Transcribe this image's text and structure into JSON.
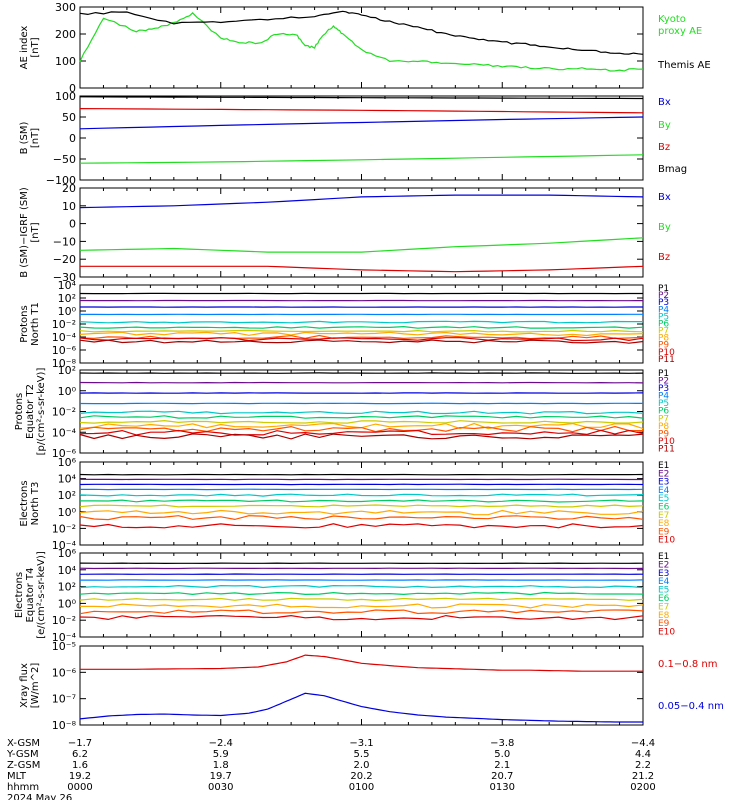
{
  "chart_data": [
    {
      "type": "line",
      "ylabel": "AE index [nT]",
      "ylim": [
        0,
        300
      ],
      "yticks": [
        0,
        100,
        200,
        300
      ],
      "series": [
        {
          "name": "Kyoto proxy AE",
          "color": "#22dd22",
          "x": [
            0,
            5,
            12,
            16,
            20,
            24,
            30,
            34,
            38,
            42,
            46,
            48,
            50,
            52,
            54,
            56,
            60,
            66,
            72,
            78,
            84,
            90,
            96,
            102,
            108,
            114,
            120
          ],
          "y": [
            100,
            260,
            210,
            220,
            240,
            275,
            185,
            170,
            165,
            200,
            200,
            155,
            150,
            200,
            230,
            200,
            140,
            100,
            98,
            92,
            90,
            80,
            75,
            70,
            72,
            65,
            70
          ]
        },
        {
          "name": "Themis AE",
          "color": "#000000",
          "x": [
            0,
            10,
            20,
            30,
            40,
            50,
            56,
            60,
            66,
            72,
            78,
            84,
            90,
            96,
            102,
            108,
            114,
            120
          ],
          "y": [
            275,
            280,
            240,
            245,
            255,
            265,
            285,
            270,
            245,
            225,
            200,
            185,
            170,
            160,
            150,
            140,
            130,
            125
          ]
        }
      ]
    },
    {
      "type": "line",
      "ylabel": "B (SM) [nT]",
      "ylim": [
        -100,
        100
      ],
      "yticks": [
        -100,
        -50,
        0,
        50,
        100
      ],
      "series": [
        {
          "name": "Bx",
          "color": "#0000dd",
          "x": [
            0,
            30,
            60,
            90,
            120
          ],
          "y": [
            22,
            30,
            37,
            44,
            50
          ]
        },
        {
          "name": "By",
          "color": "#22dd22",
          "x": [
            0,
            30,
            60,
            90,
            120
          ],
          "y": [
            -60,
            -57,
            -52,
            -46,
            -40
          ]
        },
        {
          "name": "Bz",
          "color": "#dd0000",
          "x": [
            0,
            30,
            60,
            90,
            120
          ],
          "y": [
            70,
            68,
            66,
            63,
            60
          ]
        },
        {
          "name": "Bmag",
          "color": "#000000",
          "x": [
            0,
            30,
            60,
            90,
            120
          ],
          "y": [
            98,
            97,
            96,
            95,
            94
          ]
        }
      ]
    },
    {
      "type": "line",
      "ylabel": "B (SM)−IGRF (SM) [nT]",
      "ylim": [
        -30,
        20
      ],
      "yticks": [
        -30,
        -20,
        -10,
        0,
        10,
        20
      ],
      "series": [
        {
          "name": "Bx",
          "color": "#0000dd",
          "x": [
            0,
            20,
            40,
            60,
            80,
            100,
            120
          ],
          "y": [
            9,
            10,
            12,
            15,
            16,
            16,
            15
          ]
        },
        {
          "name": "By",
          "color": "#22dd22",
          "x": [
            0,
            20,
            40,
            60,
            80,
            100,
            120
          ],
          "y": [
            -15,
            -14,
            -16,
            -16,
            -13,
            -11,
            -8
          ]
        },
        {
          "name": "Bz",
          "color": "#dd0000",
          "x": [
            0,
            20,
            40,
            60,
            80,
            100,
            120
          ],
          "y": [
            -24,
            -24,
            -24,
            -26,
            -27,
            -26,
            -24
          ]
        }
      ]
    },
    {
      "type": "line",
      "ylabel": "Protons North T1",
      "yscale": "log",
      "ylim": [
        1e-08,
        10000.0
      ],
      "yticks": [
        "10^-8",
        "10^-6",
        "10^-4",
        "10^-2",
        "10^0",
        "10^2",
        "10^4"
      ],
      "series": [
        {
          "name": "P1",
          "color": "#000000",
          "level": 500
        },
        {
          "name": "P2",
          "color": "#6a0d8a",
          "level": 40
        },
        {
          "name": "P3",
          "color": "#0000dd",
          "level": 4
        },
        {
          "name": "P4",
          "color": "#0080ff",
          "level": 0.3
        },
        {
          "name": "P5",
          "color": "#00c8c8",
          "level": 0.02
        },
        {
          "name": "P6",
          "color": "#00cc66",
          "level": 0.003
        },
        {
          "name": "P7",
          "color": "#cccc00",
          "level": 0.0008
        },
        {
          "name": "P8",
          "color": "#ffaa00",
          "level": 0.0003
        },
        {
          "name": "P9",
          "color": "#ff5500",
          "level": 0.0001
        },
        {
          "name": "P10",
          "color": "#dd0000",
          "level": 5e-05
        },
        {
          "name": "P11",
          "color": "#aa0000",
          "level": 2e-05
        }
      ]
    },
    {
      "type": "line",
      "ylabel": "Protons Equator T2 [p/(cm²-s-sr-keV)]",
      "yscale": "log",
      "ylim": [
        1e-06,
        100.0
      ],
      "yticks": [
        "10^-6",
        "10^-4",
        "10^-2",
        "10^0",
        "10^2"
      ],
      "series": [
        {
          "name": "P1",
          "color": "#000000",
          "level": 50
        },
        {
          "name": "P2",
          "color": "#6a0d8a",
          "level": 6
        },
        {
          "name": "P3",
          "color": "#0000dd",
          "level": 0.6
        },
        {
          "name": "P4",
          "color": "#0080ff",
          "level": 0.06
        },
        {
          "name": "P5",
          "color": "#00c8c8",
          "level": 0.008
        },
        {
          "name": "P6",
          "color": "#00cc66",
          "level": 0.003
        },
        {
          "name": "P7",
          "color": "#cccc00",
          "level": 0.001
        },
        {
          "name": "P8",
          "color": "#ffaa00",
          "level": 0.0004
        },
        {
          "name": "P9",
          "color": "#ff5500",
          "level": 0.0002
        },
        {
          "name": "P10",
          "color": "#dd0000",
          "level": 9e-05
        },
        {
          "name": "P11",
          "color": "#aa0000",
          "level": 4e-05
        }
      ]
    },
    {
      "type": "line",
      "ylabel": "Electrons North T3",
      "yscale": "log",
      "ylim": [
        0.0001,
        1000000.0
      ],
      "yticks": [
        "10^-4",
        "10^-2",
        "10^0",
        "10^2",
        "10^4",
        "10^6"
      ],
      "series": [
        {
          "name": "E1",
          "color": "#000000",
          "level": 30000
        },
        {
          "name": "E2",
          "color": "#6a0d8a",
          "level": 8000
        },
        {
          "name": "E3",
          "color": "#0000dd",
          "level": 2000
        },
        {
          "name": "E4",
          "color": "#0080ff",
          "level": 500
        },
        {
          "name": "E5",
          "color": "#00c8c8",
          "level": 100
        },
        {
          "name": "E6",
          "color": "#00cc66",
          "level": 20
        },
        {
          "name": "E7",
          "color": "#cccc00",
          "level": 5
        },
        {
          "name": "E8",
          "color": "#ffaa00",
          "level": 0.8
        },
        {
          "name": "E9",
          "color": "#ff5500",
          "level": 0.2
        },
        {
          "name": "E10",
          "color": "#dd0000",
          "level": 0.02
        }
      ]
    },
    {
      "type": "line",
      "ylabel": "Electrons Equator T4 [e/(cm²-s-sr-keV)]",
      "yscale": "log",
      "ylim": [
        0.0001,
        1000000.0
      ],
      "yticks": [
        "10^-4",
        "10^-2",
        "10^0",
        "10^2",
        "10^4",
        "10^6"
      ],
      "series": [
        {
          "name": "E1",
          "color": "#000000",
          "level": 60000
        },
        {
          "name": "E2",
          "color": "#6a0d8a",
          "level": 15000
        },
        {
          "name": "E3",
          "color": "#0000dd",
          "level": 3000
        },
        {
          "name": "E4",
          "color": "#0080ff",
          "level": 600
        },
        {
          "name": "E5",
          "color": "#00c8c8",
          "level": 100
        },
        {
          "name": "E6",
          "color": "#00cc66",
          "level": 15
        },
        {
          "name": "E7",
          "color": "#cccc00",
          "level": 3
        },
        {
          "name": "E8",
          "color": "#ffaa00",
          "level": 0.5
        },
        {
          "name": "E9",
          "color": "#ff5500",
          "level": 0.1
        },
        {
          "name": "E10",
          "color": "#dd0000",
          "level": 0.02
        }
      ]
    },
    {
      "type": "line",
      "ylabel": "Xray flux [W/m^2]",
      "yscale": "log",
      "ylim": [
        1e-08,
        1e-05
      ],
      "yticks": [
        "10^-8",
        "10^-7",
        "10^-6",
        "10^-5"
      ],
      "series": [
        {
          "name": "0.1−0.8 nm",
          "color": "#dd0000",
          "x": [
            0,
            10,
            20,
            30,
            38,
            44,
            48,
            52,
            56,
            60,
            66,
            72,
            78,
            84,
            90,
            96,
            102,
            108,
            114,
            120
          ],
          "y": [
            1.3e-06,
            1.3e-06,
            1.35e-06,
            1.4e-06,
            1.6e-06,
            2.5e-06,
            4.5e-06,
            4e-06,
            3e-06,
            2.2e-06,
            1.8e-06,
            1.5e-06,
            1.4e-06,
            1.3e-06,
            1.2e-06,
            1.2e-06,
            1.15e-06,
            1.1e-06,
            1.1e-06,
            1.1e-06
          ]
        },
        {
          "name": "0.05−0.4 nm",
          "color": "#0000dd",
          "x": [
            0,
            6,
            12,
            18,
            24,
            30,
            36,
            40,
            44,
            48,
            52,
            56,
            60,
            66,
            72,
            78,
            84,
            90,
            96,
            102,
            108,
            114,
            120
          ],
          "y": [
            1.7e-08,
            2.2e-08,
            2.5e-08,
            2.6e-08,
            2.4e-08,
            2.3e-08,
            2.8e-08,
            4e-08,
            8e-08,
            1.6e-07,
            1.3e-07,
            8e-08,
            5e-08,
            3.2e-08,
            2.4e-08,
            2e-08,
            1.8e-08,
            1.6e-08,
            1.5e-08,
            1.4e-08,
            1.35e-08,
            1.3e-08,
            1.3e-08
          ]
        }
      ]
    }
  ],
  "panels": [
    {
      "ylabel_lines": [
        "AE index",
        "[nT]"
      ],
      "yticks": [
        "0",
        "100",
        "200",
        "300"
      ],
      "legend": [
        {
          "text": "Kyoto",
          "color": "#22dd22"
        },
        {
          "text": "proxy AE",
          "color": "#22dd22"
        },
        {
          "text": "Themis AE",
          "color": "#000000"
        }
      ]
    },
    {
      "ylabel_lines": [
        "B (SM)",
        "[nT]"
      ],
      "yticks": [
        "−100",
        "−50",
        "0",
        "50",
        "100"
      ],
      "legend": [
        {
          "text": "Bx",
          "color": "#0000dd"
        },
        {
          "text": "By",
          "color": "#22dd22"
        },
        {
          "text": "Bz",
          "color": "#dd0000"
        },
        {
          "text": "Bmag",
          "color": "#000000"
        }
      ]
    },
    {
      "ylabel_lines": [
        "B (SM)−IGRF (SM)",
        "[nT]"
      ],
      "yticks": [
        "−30",
        "−20",
        "−10",
        "0",
        "10",
        "20"
      ],
      "legend": [
        {
          "text": "Bx",
          "color": "#0000dd"
        },
        {
          "text": "By",
          "color": "#22dd22"
        },
        {
          "text": "Bz",
          "color": "#dd0000"
        }
      ]
    },
    {
      "ylabel_lines": [
        "Protons",
        "North T1"
      ],
      "yticks": [
        "10⁻⁸",
        "10⁻⁶",
        "10⁻⁴",
        "10⁻²",
        "10⁰",
        "10²",
        "10⁴"
      ],
      "legend": [
        {
          "text": "P1",
          "color": "#000000"
        },
        {
          "text": "P2",
          "color": "#6a0d8a"
        },
        {
          "text": "P3",
          "color": "#0000dd"
        },
        {
          "text": "P4",
          "color": "#0080ff"
        },
        {
          "text": "P5",
          "color": "#00c8c8"
        },
        {
          "text": "P6",
          "color": "#00cc66"
        },
        {
          "text": "P7",
          "color": "#cccc00"
        },
        {
          "text": "P8",
          "color": "#ffaa00"
        },
        {
          "text": "P9",
          "color": "#ff5500"
        },
        {
          "text": "P10",
          "color": "#dd0000"
        },
        {
          "text": "P11",
          "color": "#aa0000"
        }
      ]
    },
    {
      "ylabel_lines": [
        "Protons",
        "Equator T2",
        "[p/(cm²-s-sr-keV)]"
      ],
      "yticks": [
        "10⁻⁶",
        "10⁻⁴",
        "10⁻²",
        "10⁰",
        "10²"
      ],
      "legend": [
        {
          "text": "P1",
          "color": "#000000"
        },
        {
          "text": "P2",
          "color": "#6a0d8a"
        },
        {
          "text": "P3",
          "color": "#0000dd"
        },
        {
          "text": "P4",
          "color": "#0080ff"
        },
        {
          "text": "P5",
          "color": "#00c8c8"
        },
        {
          "text": "P6",
          "color": "#00cc66"
        },
        {
          "text": "P7",
          "color": "#cccc00"
        },
        {
          "text": "P8",
          "color": "#ffaa00"
        },
        {
          "text": "P9",
          "color": "#ff5500"
        },
        {
          "text": "P10",
          "color": "#dd0000"
        },
        {
          "text": "P11",
          "color": "#aa0000"
        }
      ]
    },
    {
      "ylabel_lines": [
        "Electrons",
        "North T3"
      ],
      "yticks": [
        "10⁻⁴",
        "10⁻²",
        "10⁰",
        "10²",
        "10⁴",
        "10⁶"
      ],
      "legend": [
        {
          "text": "E1",
          "color": "#000000"
        },
        {
          "text": "E2",
          "color": "#6a0d8a"
        },
        {
          "text": "E3",
          "color": "#0000dd"
        },
        {
          "text": "E4",
          "color": "#0080ff"
        },
        {
          "text": "E5",
          "color": "#00c8c8"
        },
        {
          "text": "E6",
          "color": "#00cc66"
        },
        {
          "text": "E7",
          "color": "#cccc00"
        },
        {
          "text": "E8",
          "color": "#ffaa00"
        },
        {
          "text": "E9",
          "color": "#ff5500"
        },
        {
          "text": "E10",
          "color": "#dd0000"
        }
      ]
    },
    {
      "ylabel_lines": [
        "Electrons",
        "Equator T4",
        "[e/(cm²-s-sr-keV)]"
      ],
      "yticks": [
        "10⁻⁴",
        "10⁻²",
        "10⁰",
        "10²",
        "10⁴",
        "10⁶"
      ],
      "legend": [
        {
          "text": "E1",
          "color": "#000000"
        },
        {
          "text": "E2",
          "color": "#6a0d8a"
        },
        {
          "text": "E3",
          "color": "#0000dd"
        },
        {
          "text": "E4",
          "color": "#0080ff"
        },
        {
          "text": "E5",
          "color": "#00c8c8"
        },
        {
          "text": "E6",
          "color": "#00cc66"
        },
        {
          "text": "E7",
          "color": "#cccc00"
        },
        {
          "text": "E8",
          "color": "#ffaa00"
        },
        {
          "text": "E9",
          "color": "#ff5500"
        },
        {
          "text": "E10",
          "color": "#dd0000"
        }
      ]
    },
    {
      "ylabel_lines": [
        "Xray flux",
        "[W/m^2]"
      ],
      "yticks": [
        "10⁻⁸",
        "10⁻⁷",
        "10⁻⁶",
        "10⁻⁵"
      ],
      "legend": [
        {
          "text": "0.1−0.8 nm",
          "color": "#dd0000"
        },
        {
          "text": "0.05−0.4 nm",
          "color": "#0000dd"
        }
      ]
    }
  ],
  "footer": {
    "rows": [
      {
        "label": "X-GSM",
        "values": [
          "−1.7",
          "−2.4",
          "−3.1",
          "−3.8",
          "−4.4"
        ]
      },
      {
        "label": "Y-GSM",
        "values": [
          "6.2",
          "5.9",
          "5.5",
          "5.0",
          "4.4"
        ]
      },
      {
        "label": "Z-GSM",
        "values": [
          "1.6",
          "1.8",
          "2.0",
          "2.1",
          "2.2"
        ]
      },
      {
        "label": "MLT",
        "values": [
          "19.2",
          "19.7",
          "20.2",
          "20.7",
          "21.2"
        ]
      },
      {
        "label": "hhmm",
        "values": [
          "0000",
          "0030",
          "0100",
          "0130",
          "0200"
        ]
      }
    ],
    "date": "2024 May 26"
  }
}
